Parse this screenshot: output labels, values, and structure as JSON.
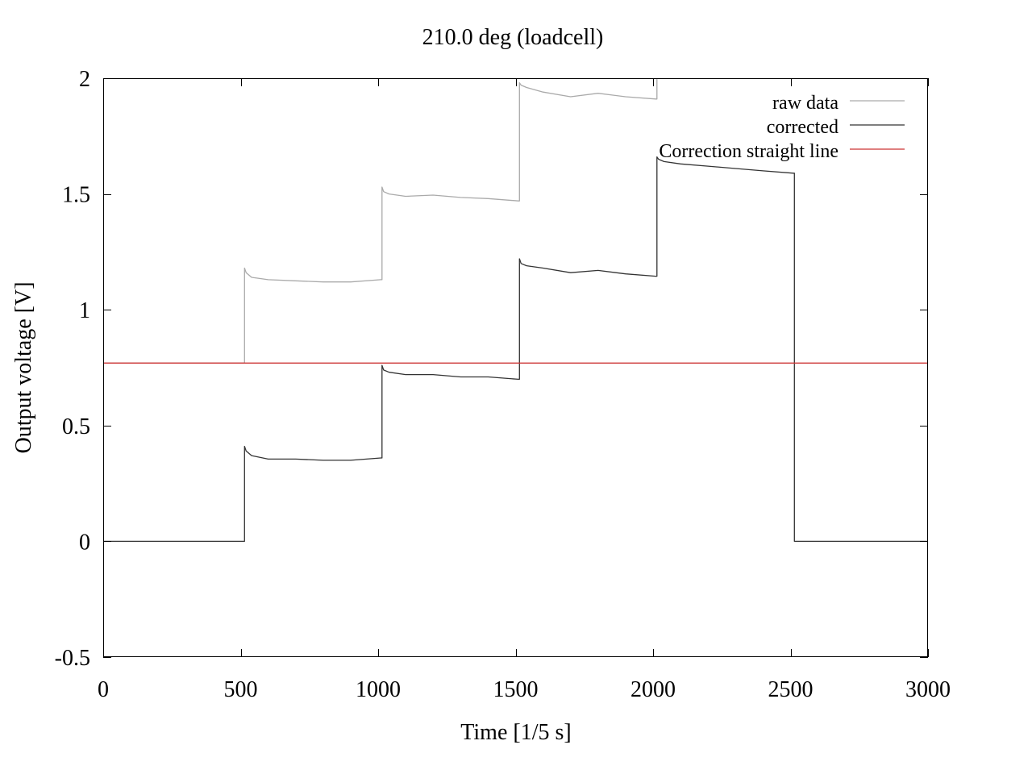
{
  "chart_data": {
    "type": "line",
    "title": "210.0 deg (loadcell)",
    "xlabel": "Time [1/5 s]",
    "ylabel": "Output voltage [V]",
    "xlim": [
      0,
      3000
    ],
    "ylim": [
      -0.5,
      2
    ],
    "xticks": [
      0,
      500,
      1000,
      1500,
      2000,
      2500,
      3000
    ],
    "xtick_labels": [
      "0",
      "500",
      "1000",
      "1500",
      "2000",
      "2500",
      "3000"
    ],
    "yticks": [
      -0.5,
      0,
      0.5,
      1,
      1.5,
      2
    ],
    "ytick_labels": [
      "-0.5",
      "0",
      "0.5",
      "1",
      "1.5",
      "2"
    ],
    "grid": false,
    "legend_position": "top-right",
    "series": [
      {
        "name": "raw data",
        "color": "#aaaaaa",
        "x": [
          0,
          514,
          514,
          520,
          540,
          600,
          700,
          800,
          900,
          1010,
          1014,
          1014,
          1020,
          1040,
          1100,
          1200,
          1300,
          1400,
          1510,
          1514,
          1514,
          1520,
          1540,
          1600,
          1700,
          1800,
          1900,
          2010,
          2014,
          2014
        ],
        "y": [
          0.77,
          0.77,
          1.18,
          1.16,
          1.14,
          1.13,
          1.125,
          1.12,
          1.12,
          1.13,
          1.13,
          1.53,
          1.51,
          1.5,
          1.49,
          1.495,
          1.485,
          1.48,
          1.47,
          1.47,
          1.98,
          1.97,
          1.96,
          1.94,
          1.92,
          1.935,
          1.92,
          1.91,
          1.91,
          2.0
        ]
      },
      {
        "name": "corrected",
        "color": "#333333",
        "x": [
          0,
          514,
          514,
          520,
          540,
          600,
          700,
          800,
          900,
          1010,
          1014,
          1014,
          1020,
          1040,
          1100,
          1200,
          1300,
          1400,
          1510,
          1514,
          1514,
          1520,
          1540,
          1600,
          1700,
          1800,
          1900,
          2010,
          2014,
          2014,
          2020,
          2040,
          2100,
          2200,
          2300,
          2400,
          2510,
          2514,
          2514,
          2600,
          3000
        ],
        "y": [
          0.0,
          0.0,
          0.41,
          0.39,
          0.37,
          0.355,
          0.355,
          0.35,
          0.35,
          0.36,
          0.36,
          0.76,
          0.74,
          0.73,
          0.72,
          0.72,
          0.71,
          0.71,
          0.7,
          0.7,
          1.22,
          1.2,
          1.19,
          1.18,
          1.16,
          1.17,
          1.155,
          1.145,
          1.145,
          1.66,
          1.65,
          1.64,
          1.63,
          1.62,
          1.61,
          1.6,
          1.59,
          1.59,
          0.0,
          0.0,
          0.0
        ]
      },
      {
        "name": "Correction straight line",
        "color": "#cc3333",
        "x": [
          0,
          3000
        ],
        "y": [
          0.77,
          0.77
        ]
      }
    ]
  }
}
